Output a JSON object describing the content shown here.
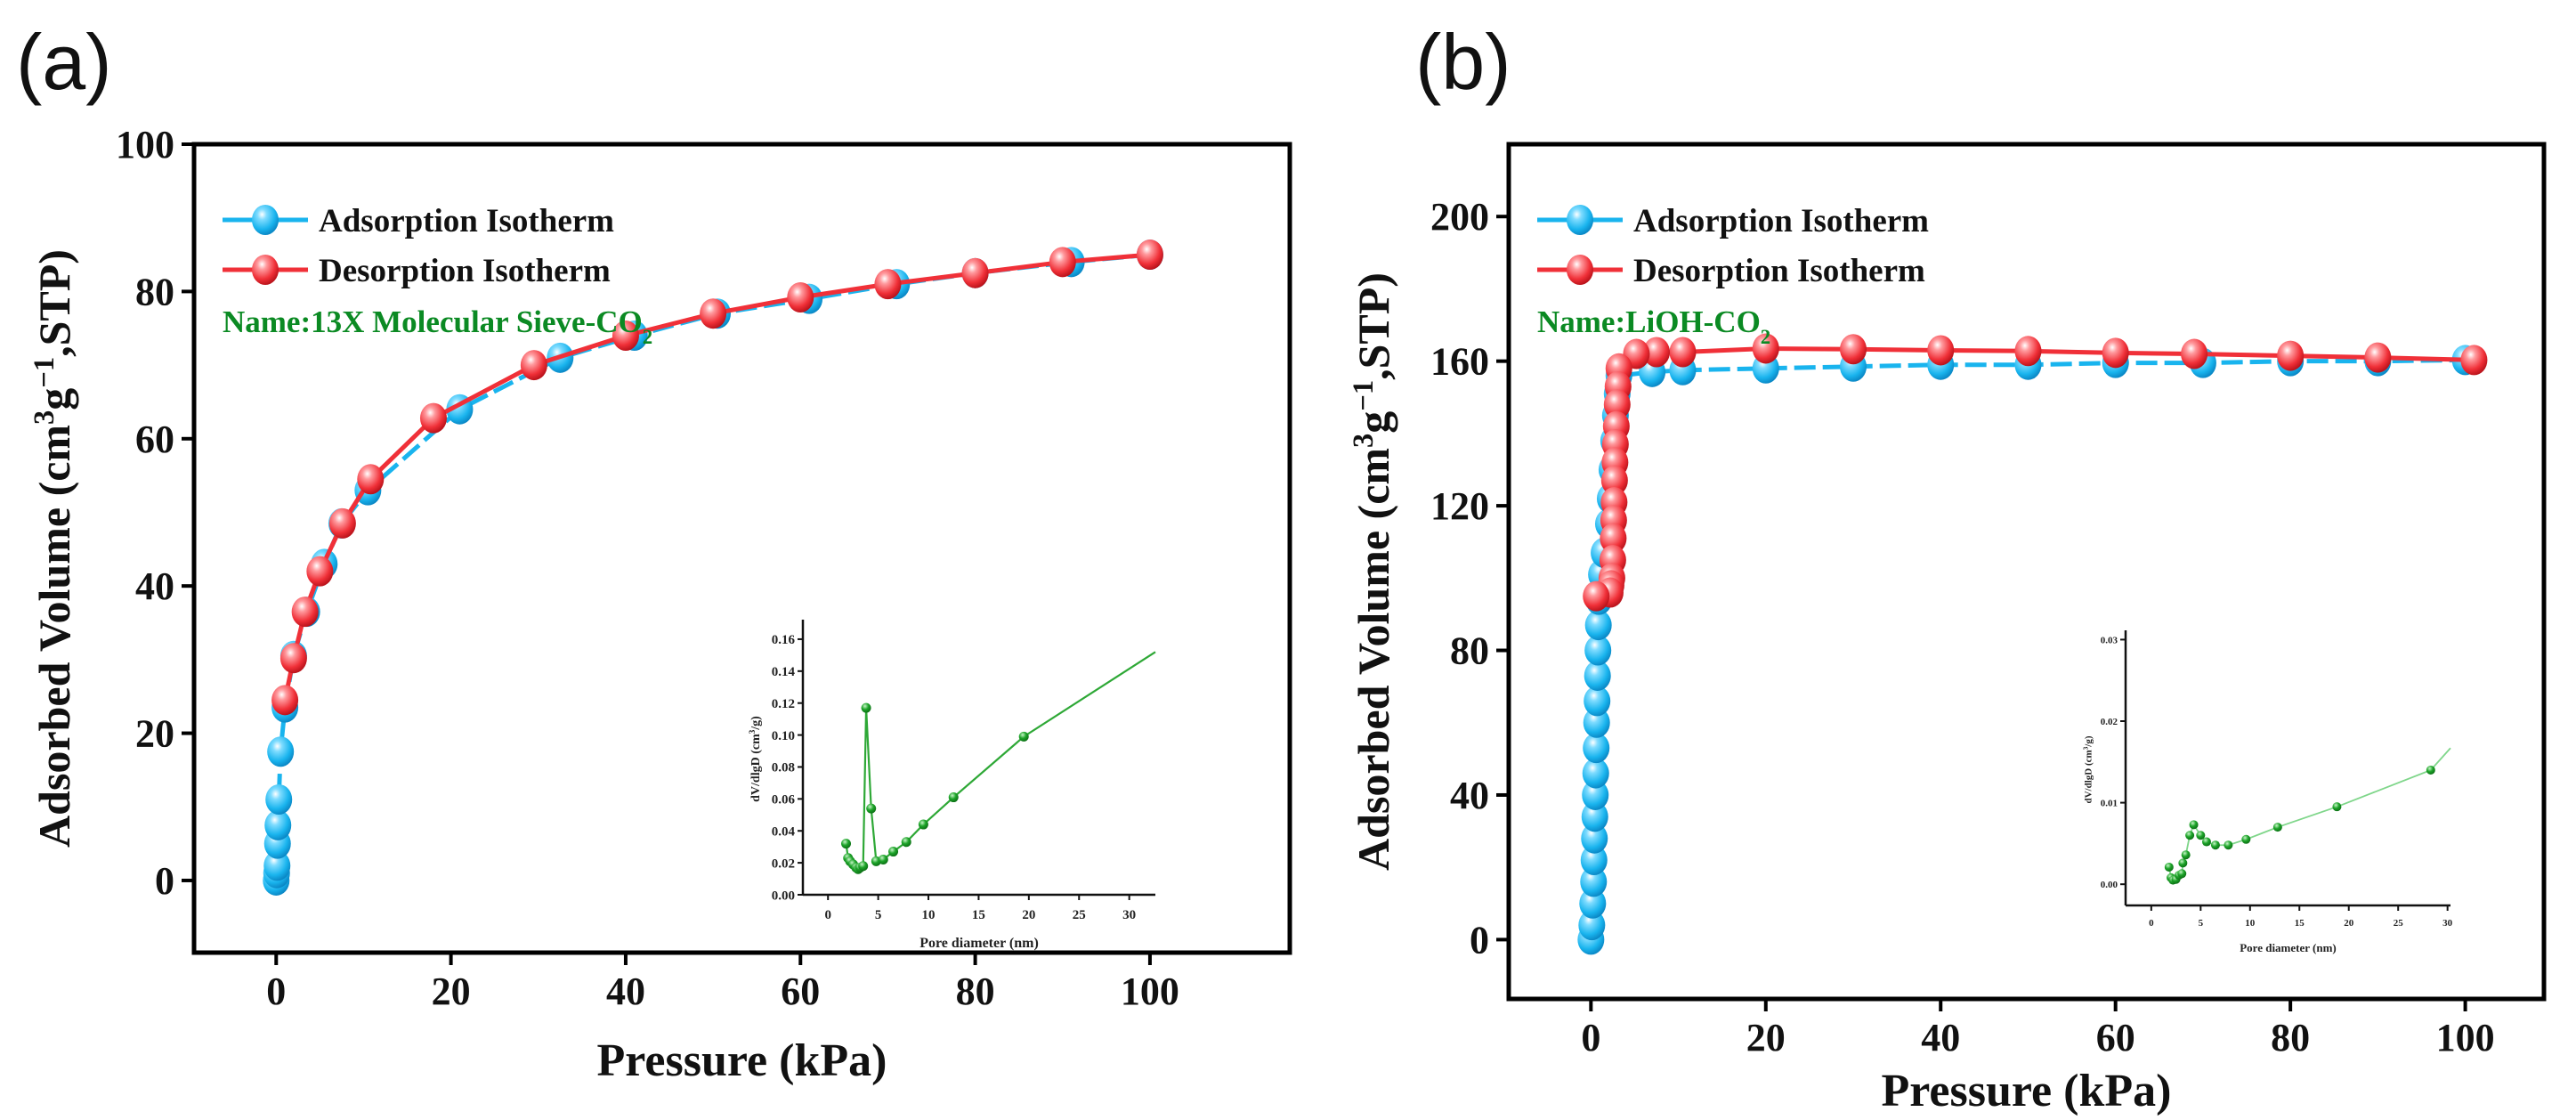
{
  "colors": {
    "adsorption": "#19b4ee",
    "desorption": "#f03038",
    "name_text": "#0b8a23",
    "inset_a": "#2ea836",
    "inset_b_line": "#7fd68a",
    "inset_marker": "#139a1e"
  },
  "chart_data": [
    {
      "panel_label": "(a)",
      "type": "line",
      "xlabel": "Pressure (kPa)",
      "ylabel_parts": [
        {
          "t": "Adsorbed Volume (cm"
        },
        {
          "t": "3",
          "sup": true
        },
        {
          "t": "g"
        },
        {
          "t": "−1",
          "sup": true
        },
        {
          "t": ",STP)"
        }
      ],
      "xlim": [
        -9.4,
        116
      ],
      "ylim": [
        -9.8,
        100
      ],
      "xticks": [
        0,
        20,
        40,
        60,
        80,
        100
      ],
      "yticks": [
        0,
        20,
        40,
        60,
        80,
        100
      ],
      "legend": [
        "Adsorption Isotherm",
        "Desorption Isotherm"
      ],
      "legend_position": "top-left",
      "name_parts": [
        {
          "t": "Name:13X Molecular Sieve-CO"
        },
        {
          "t": "2",
          "sub": true
        }
      ],
      "series": [
        {
          "name": "Adsorption Isotherm",
          "x": [
            0,
            0.05,
            0.1,
            0.15,
            0.2,
            0.3,
            0.5,
            1,
            2,
            3.5,
            5.5,
            7.5,
            10.5,
            21,
            32.5,
            41,
            50.5,
            61,
            71,
            80,
            91,
            100
          ],
          "y": [
            0,
            1,
            2,
            5,
            7.5,
            11,
            17.5,
            23.5,
            30.5,
            36.5,
            43,
            48.5,
            53,
            64,
            71,
            74,
            77,
            79,
            81,
            82.5,
            84,
            85
          ]
        },
        {
          "name": "Desorption Isotherm",
          "x": [
            100,
            90,
            80,
            70,
            60,
            50,
            40,
            29.5,
            18,
            10.8,
            7.6,
            5,
            3.3,
            2,
            1
          ],
          "y": [
            85,
            84,
            82.5,
            81,
            79.2,
            77,
            74,
            70,
            62.8,
            54.5,
            48.5,
            42,
            36.5,
            30.2,
            24.5
          ]
        }
      ],
      "inset": {
        "type": "line",
        "xlabel": "Pore diameter (nm)",
        "ylabel_parts": [
          {
            "t": "dV/dlgD (cm"
          },
          {
            "t": "3",
            "sup": true
          },
          {
            "t": "/g)"
          }
        ],
        "xlim": [
          -2.5,
          32.6
        ],
        "ylim": [
          0,
          0.17
        ],
        "xticks": [
          0,
          5,
          10,
          15,
          20,
          25,
          30
        ],
        "yticks": [
          "0.00",
          "0.02",
          "0.04",
          "0.06",
          "0.08",
          "0.10",
          "0.12",
          "0.14",
          "0.16"
        ],
        "x": [
          1.8,
          2.0,
          2.2,
          2.5,
          2.8,
          3.0,
          3.2,
          3.5,
          3.8,
          4.3,
          4.8,
          5.5,
          6.5,
          7.8,
          9.5,
          12.5,
          19.5
        ],
        "y": [
          0.032,
          0.023,
          0.021,
          0.019,
          0.017,
          0.016,
          0.017,
          0.018,
          0.117,
          0.054,
          0.021,
          0.022,
          0.027,
          0.033,
          0.044,
          0.061,
          0.099
        ],
        "line_end": [
          32.6,
          0.152
        ]
      }
    },
    {
      "panel_label": "(b)",
      "type": "line",
      "xlabel": "Pressure (kPa)",
      "ylabel_parts": [
        {
          "t": "Adsorbed Volume (cm"
        },
        {
          "t": "3",
          "sup": true
        },
        {
          "t": "g"
        },
        {
          "t": "−1",
          "sup": true
        },
        {
          "t": ",STP)"
        }
      ],
      "xlim": [
        -9.4,
        109
      ],
      "ylim": [
        -16.4,
        220
      ],
      "xticks": [
        0,
        20,
        40,
        60,
        80,
        100
      ],
      "yticks": [
        0,
        40,
        80,
        120,
        160,
        200
      ],
      "legend": [
        "Adsorption Isotherm",
        "Desorption Isotherm"
      ],
      "legend_position": "top-left",
      "name_parts": [
        {
          "t": "Name:LiOH-CO"
        },
        {
          "t": "2",
          "sub": true
        }
      ],
      "series": [
        {
          "name": "Adsorption Isotherm",
          "x": [
            0,
            0.1,
            0.2,
            0.3,
            0.35,
            0.4,
            0.45,
            0.5,
            0.55,
            0.6,
            0.65,
            0.7,
            0.75,
            0.8,
            0.85,
            0.9,
            1.2,
            1.5,
            2.0,
            2.2,
            2.4,
            2.6,
            2.8,
            3.0,
            3.2,
            7,
            10.5,
            20,
            30,
            40,
            50,
            60,
            70,
            80,
            90,
            100
          ],
          "y": [
            0,
            4,
            10,
            16,
            22,
            28,
            34,
            40,
            46,
            53,
            60,
            66,
            73,
            80,
            87,
            94,
            101,
            107,
            115,
            122,
            130,
            138,
            145,
            151,
            156,
            157,
            157.5,
            158,
            158.5,
            159,
            159,
            159.5,
            159.5,
            160,
            160,
            160.3
          ]
        },
        {
          "name": "Desorption Isotherm",
          "x": [
            101,
            90,
            80,
            69,
            60,
            50,
            40,
            30,
            20,
            10.5,
            7.5,
            5.2,
            3.2,
            3.1,
            3.0,
            2.9,
            2.8,
            2.75,
            2.7,
            2.65,
            2.6,
            2.55,
            2.5,
            2.4,
            2.3,
            2.2,
            0.6
          ],
          "y": [
            160.3,
            161,
            161.5,
            162,
            162.3,
            162.8,
            163,
            163.3,
            163.5,
            162.5,
            162.5,
            162,
            158,
            153,
            148,
            142,
            137,
            132,
            127,
            121,
            116,
            111,
            105,
            100,
            98,
            96,
            95
          ]
        }
      ],
      "inset": {
        "type": "line",
        "xlabel": "Pore diameter (nm)",
        "ylabel_parts": [
          {
            "t": "dV/dlgD (cm"
          },
          {
            "t": "3",
            "sup": true
          },
          {
            "t": "/g)"
          }
        ],
        "xlim": [
          -2.6,
          30.3
        ],
        "ylim": [
          -0.0026,
          0.0307
        ],
        "xticks": [
          0,
          5,
          10,
          15,
          20,
          25,
          30
        ],
        "yticks": [
          "0.00",
          "0.01",
          "0.02",
          "0.03"
        ],
        "x": [
          1.8,
          2.0,
          2.2,
          2.5,
          2.8,
          3.1,
          3.2,
          3.5,
          3.9,
          4.3,
          5.0,
          5.6,
          6.5,
          7.8,
          9.6,
          12.8,
          18.8,
          28.3
        ],
        "y": [
          0.0021,
          0.0008,
          0.0005,
          0.0006,
          0.0011,
          0.0013,
          0.0026,
          0.0036,
          0.006,
          0.0073,
          0.006,
          0.0052,
          0.0048,
          0.0048,
          0.0055,
          0.007,
          0.0095,
          0.014
        ],
        "line_end": [
          30.3,
          0.0167
        ]
      }
    }
  ]
}
